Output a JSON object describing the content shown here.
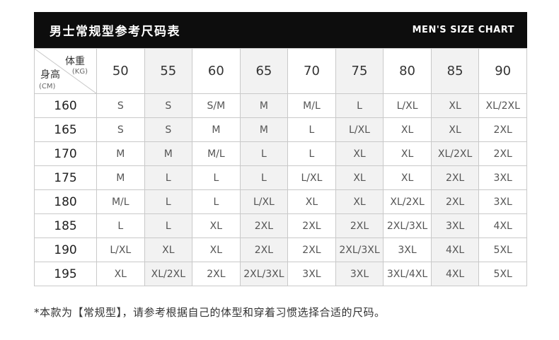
{
  "header": {
    "title": "男士常规型参考尺码表",
    "subtitle": "MEN'S SIZE CHART"
  },
  "chart_data": {
    "type": "table",
    "title": "男士常规型参考尺码表 (MEN'S SIZE CHART)",
    "column_axis": {
      "label": "体重",
      "unit": "(KG)"
    },
    "row_axis": {
      "label": "身高",
      "unit": "(CM)"
    },
    "columns": [
      "50",
      "55",
      "60",
      "65",
      "70",
      "75",
      "80",
      "85",
      "90"
    ],
    "rows": [
      {
        "height": "160",
        "sizes": [
          "S",
          "S",
          "S/M",
          "M",
          "M/L",
          "L",
          "L/XL",
          "XL",
          "XL/2XL"
        ]
      },
      {
        "height": "165",
        "sizes": [
          "S",
          "S",
          "M",
          "M",
          "L",
          "L/XL",
          "XL",
          "XL",
          "2XL"
        ]
      },
      {
        "height": "170",
        "sizes": [
          "M",
          "M",
          "M/L",
          "L",
          "L",
          "XL",
          "XL",
          "XL/2XL",
          "2XL"
        ]
      },
      {
        "height": "175",
        "sizes": [
          "M",
          "L",
          "L",
          "L",
          "L/XL",
          "XL",
          "XL",
          "2XL",
          "3XL"
        ]
      },
      {
        "height": "180",
        "sizes": [
          "M/L",
          "L",
          "L",
          "L/XL",
          "XL",
          "XL",
          "XL/2XL",
          "2XL",
          "3XL"
        ]
      },
      {
        "height": "185",
        "sizes": [
          "L",
          "L",
          "XL",
          "2XL",
          "2XL",
          "2XL",
          "2XL/3XL",
          "3XL",
          "4XL"
        ]
      },
      {
        "height": "190",
        "sizes": [
          "L/XL",
          "XL",
          "XL",
          "2XL",
          "2XL",
          "2XL/3XL",
          "3XL",
          "4XL",
          "5XL"
        ]
      },
      {
        "height": "195",
        "sizes": [
          "XL",
          "XL/2XL",
          "2XL",
          "2XL/3XL",
          "3XL",
          "3XL",
          "3XL/4XL",
          "4XL",
          "5XL"
        ]
      }
    ]
  },
  "footnote": "*本款为【常规型】，请参考根据自己的体型和穿着习惯选择合适的尺码。",
  "colors": {
    "header_bg": "#0d0d0d",
    "header_text": "#ffffff",
    "stripe_bg": "#f2f2f2",
    "border": "#c9c9c9",
    "cell_text": "#555555",
    "page_bg": "#ffffff"
  }
}
